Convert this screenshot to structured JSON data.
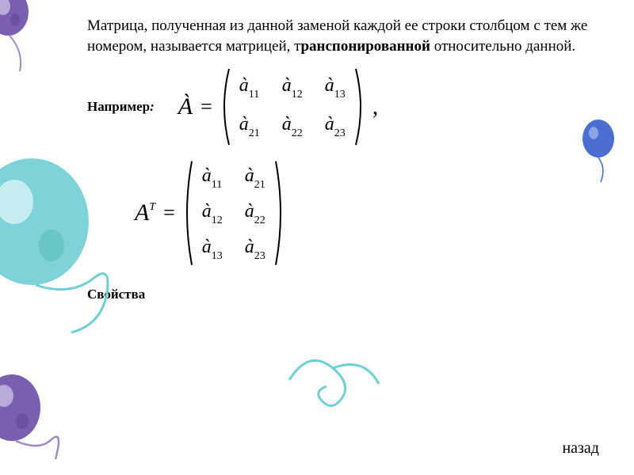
{
  "slide": {
    "text_before_bold": "Матрица, полученная из данной заменой каждой ее строки столбцом с тем же номером, называется матрицей, т",
    "bold_word": "ранспонированной",
    "text_after_bold": "   относительно данной.",
    "example_label": "Например",
    "example_colon": ":",
    "matrix_A": {
      "lhs": "À",
      "eq": "=",
      "cells": [
        [
          "à",
          "11"
        ],
        [
          "à",
          "12"
        ],
        [
          "à",
          "13"
        ],
        [
          "à",
          "21"
        ],
        [
          "à",
          "22"
        ],
        [
          "à",
          "23"
        ]
      ],
      "cols": 3,
      "rows": 2,
      "trailing": ","
    },
    "matrix_AT": {
      "lhs": "A",
      "sup": "T",
      "eq": "=",
      "cells": [
        [
          "à",
          "11"
        ],
        [
          "à",
          "21"
        ],
        [
          "à",
          "12"
        ],
        [
          "à",
          "22"
        ],
        [
          "à",
          "13"
        ],
        [
          "à",
          "23"
        ]
      ],
      "cols": 2,
      "rows": 3
    },
    "properties_label": "Свойства",
    "back_label": "назад"
  },
  "style": {
    "text_color": "#000000",
    "background": "#ffffff",
    "balloon_teal": "#7dd3d8",
    "balloon_teal_light": "#c5ecee",
    "balloon_purple": "#7a5fb0",
    "balloon_purple_light": "#b9a9d9",
    "balloon_blue": "#4a6fd0",
    "string_color": "#6fcfd4",
    "string_purple": "#9d8bc7",
    "font_body": 19,
    "font_math": 26,
    "font_label": 17
  }
}
